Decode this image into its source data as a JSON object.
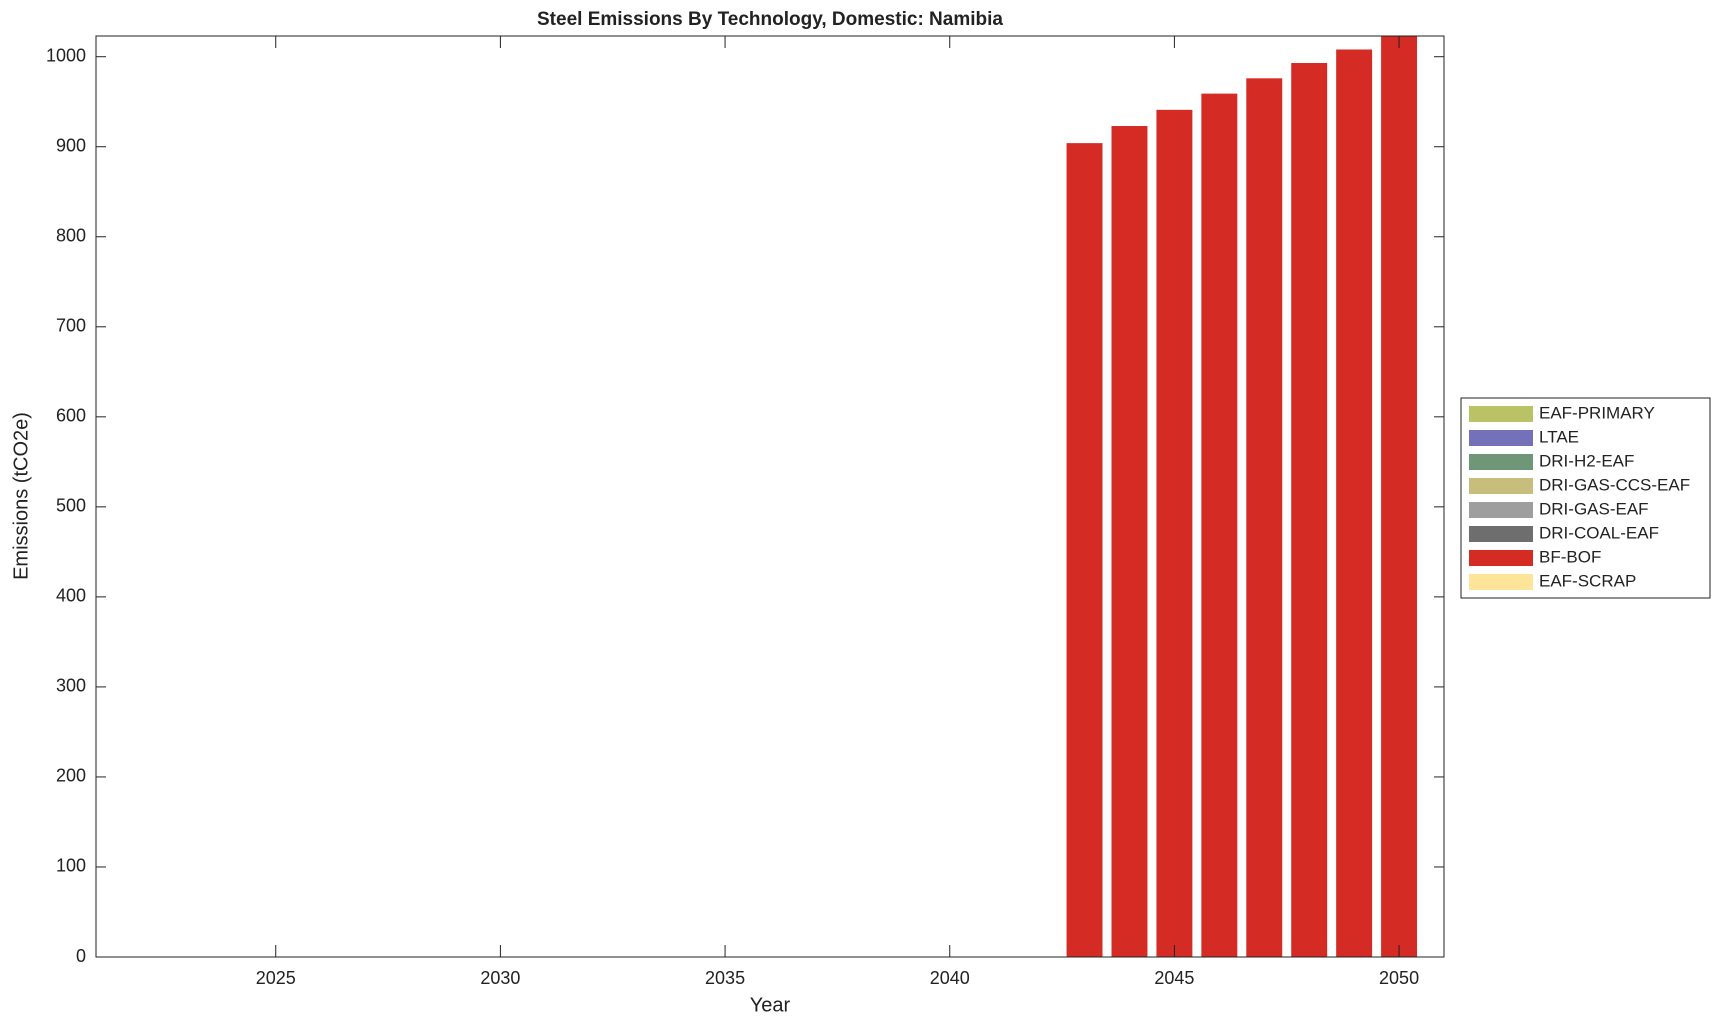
{
  "chart_data": {
    "type": "stacked_bar",
    "title": "Steel Emissions By Technology, Domestic: Namibia",
    "xlabel": "Year",
    "ylabel": "Emissions (tCO2e)",
    "x": [
      2043,
      2044,
      2045,
      2046,
      2047,
      2048,
      2049,
      2050
    ],
    "series": [
      {
        "name": "EAF-PRIMARY",
        "color": "#b9c265",
        "values": [
          0,
          0,
          0,
          0,
          0,
          0,
          0,
          0
        ]
      },
      {
        "name": "LTAE",
        "color": "#7570ba",
        "values": [
          0,
          0,
          0,
          0,
          0,
          0,
          0,
          0
        ]
      },
      {
        "name": "DRI-H2-EAF",
        "color": "#6e9677",
        "values": [
          0,
          0,
          0,
          0,
          0,
          0,
          0,
          0
        ]
      },
      {
        "name": "DRI-GAS-CCS-EAF",
        "color": "#c7bd7c",
        "values": [
          0,
          0,
          0,
          0,
          0,
          0,
          0,
          0
        ]
      },
      {
        "name": "DRI-GAS-EAF",
        "color": "#9e9e9e",
        "values": [
          0,
          0,
          0,
          0,
          0,
          0,
          0,
          0
        ]
      },
      {
        "name": "DRI-COAL-EAF",
        "color": "#6e6e6e",
        "values": [
          0,
          0,
          0,
          0,
          0,
          0,
          0,
          0
        ]
      },
      {
        "name": "BF-BOF",
        "color": "#d42b25",
        "values": [
          904,
          923,
          941,
          959,
          976,
          993,
          1008,
          1023
        ]
      },
      {
        "name": "EAF-SCRAP",
        "color": "#fce498",
        "values": [
          0,
          0,
          0,
          0,
          0,
          0,
          0,
          0
        ]
      }
    ],
    "xlim": [
      2021,
      2051
    ],
    "xticks": [
      2025,
      2030,
      2035,
      2040,
      2045,
      2050
    ],
    "ylim": [
      0,
      1023
    ],
    "yticks": [
      0,
      100,
      200,
      300,
      400,
      500,
      600,
      700,
      800,
      900,
      1000
    ],
    "bar_width": 0.8,
    "legend": "outside-right"
  }
}
